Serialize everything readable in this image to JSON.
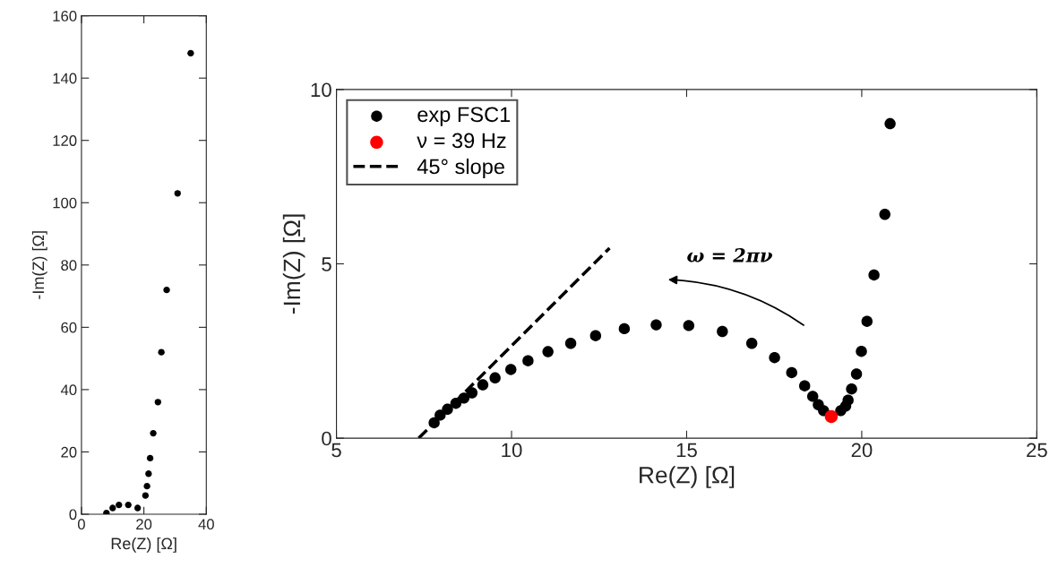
{
  "chart_data": [
    {
      "type": "scatter",
      "xlabel": "Re(Z) [Ω]",
      "ylabel": "-Im(Z) [Ω]",
      "xlim": [
        0,
        40
      ],
      "xticks": [
        0,
        20,
        40
      ],
      "ylim": [
        0,
        160
      ],
      "yticks": [
        0,
        20,
        40,
        60,
        80,
        100,
        120,
        140,
        160
      ],
      "grid": false,
      "legend": false,
      "marker": "circle",
      "series": [
        {
          "color": "#000000",
          "x": [
            8,
            10,
            12,
            15,
            18,
            20.5,
            21,
            21.5,
            22,
            23,
            24.5,
            25.6,
            27.3,
            30.8,
            35
          ],
          "values": [
            0.4,
            2,
            3,
            3,
            2,
            6,
            9,
            13,
            18,
            26,
            36,
            52,
            72,
            103,
            148
          ]
        }
      ]
    },
    {
      "type": "scatter",
      "xlabel": "Re(Z) [Ω]",
      "ylabel": "-Im(Z) [Ω]",
      "xlim": [
        5,
        25
      ],
      "xticks": [
        5,
        10,
        15,
        20,
        25
      ],
      "ylim": [
        0,
        10
      ],
      "yticks": [
        0,
        5,
        10
      ],
      "grid": false,
      "legend": "top left",
      "marker": "circle",
      "annotations": [
        "ω = 2πν"
      ],
      "series": [
        {
          "name": "exp FSC1",
          "color": "#000000",
          "x": [
            7.79,
            7.96,
            8.17,
            8.41,
            8.64,
            8.87,
            9.18,
            9.53,
            9.98,
            10.47,
            11.04,
            11.69,
            12.4,
            13.22,
            14.13,
            15.06,
            16.02,
            16.86,
            17.51,
            18.0,
            18.37,
            18.6,
            18.76,
            18.91,
            19.4,
            19.54,
            19.61,
            19.71,
            19.85,
            19.99,
            20.15,
            20.35,
            20.66,
            20.81
          ],
          "values": [
            0.44,
            0.66,
            0.83,
            1.0,
            1.15,
            1.3,
            1.53,
            1.73,
            1.97,
            2.22,
            2.48,
            2.72,
            2.94,
            3.14,
            3.25,
            3.23,
            3.06,
            2.72,
            2.31,
            1.88,
            1.5,
            1.2,
            0.96,
            0.79,
            0.79,
            0.92,
            1.09,
            1.41,
            1.84,
            2.49,
            3.35,
            4.68,
            6.42,
            9.02
          ]
        },
        {
          "name": "ν = 39 Hz",
          "color": "#ff0000",
          "x": [
            19.13
          ],
          "values": [
            0.62
          ]
        },
        {
          "name": "45° slope",
          "type": "line",
          "marker": "none",
          "line_style": "dashed",
          "color": "#000000",
          "x": [
            7.35,
            12.8
          ],
          "values": [
            0,
            5.45
          ]
        }
      ]
    }
  ]
}
